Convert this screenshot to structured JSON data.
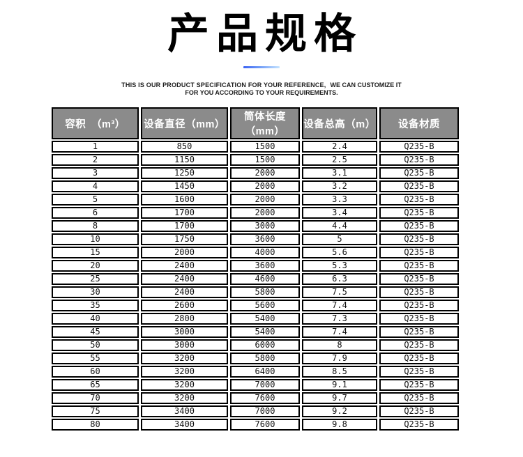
{
  "header": {
    "title": "产品规格",
    "accent_colors": [
      "#3b63f3",
      "#c6e4ff"
    ],
    "subtitle": {
      "line1_left": "THIS IS OUR PRODUCT SPECIFICATION FOR YOUR REFERENCE,",
      "line1_right": "WE CAN CUSTOMIZE IT",
      "line2": "FOR YOU ACCORDING TO YOUR REQUIREMENTS."
    }
  },
  "spec_table": {
    "header_bg": "#8b8b8b",
    "header_text_color": "#ffffff",
    "border_color": "#000000",
    "columns": [
      "容积　（m³）",
      "设备直径（mm）",
      "筒体长度（mm）",
      "设备总高（m）",
      "设备材质"
    ],
    "column_keys": [
      "volume",
      "diameter",
      "cylinder-length",
      "total-height",
      "material"
    ],
    "rows": [
      [
        "1",
        "850",
        "1500",
        "2.4",
        "Q235-B"
      ],
      [
        "2",
        "1150",
        "1500",
        "2.5",
        "Q235-B"
      ],
      [
        "3",
        "1250",
        "2000",
        "3.1",
        "Q235-B"
      ],
      [
        "4",
        "1450",
        "2000",
        "3.2",
        "Q235-B"
      ],
      [
        "5",
        "1600",
        "2000",
        "3.3",
        "Q235-B"
      ],
      [
        "6",
        "1700",
        "2000",
        "3.4",
        "Q235-B"
      ],
      [
        "8",
        "1700",
        "3000",
        "4.4",
        "Q235-B"
      ],
      [
        "10",
        "1750",
        "3600",
        "5",
        "Q235-B"
      ],
      [
        "15",
        "2000",
        "4000",
        "5.6",
        "Q235-B"
      ],
      [
        "20",
        "2400",
        "3600",
        "5.3",
        "Q235-B"
      ],
      [
        "25",
        "2400",
        "4600",
        "6.3",
        "Q235-B"
      ],
      [
        "30",
        "2400",
        "5800",
        "7.5",
        "Q235-B"
      ],
      [
        "35",
        "2600",
        "5600",
        "7.4",
        "Q235-B"
      ],
      [
        "40",
        "2800",
        "5400",
        "7.3",
        "Q235-B"
      ],
      [
        "45",
        "3000",
        "5400",
        "7.4",
        "Q235-B"
      ],
      [
        "50",
        "3000",
        "6000",
        "8",
        "Q235-B"
      ],
      [
        "55",
        "3200",
        "5800",
        "7.9",
        "Q235-B"
      ],
      [
        "60",
        "3200",
        "6400",
        "8.5",
        "Q235-B"
      ],
      [
        "65",
        "3200",
        "7000",
        "9.1",
        "Q235-B"
      ],
      [
        "70",
        "3200",
        "7600",
        "9.7",
        "Q235-B"
      ],
      [
        "75",
        "3400",
        "7000",
        "9.2",
        "Q235-B"
      ],
      [
        "80",
        "3400",
        "7600",
        "9.8",
        "Q235-B"
      ]
    ]
  }
}
